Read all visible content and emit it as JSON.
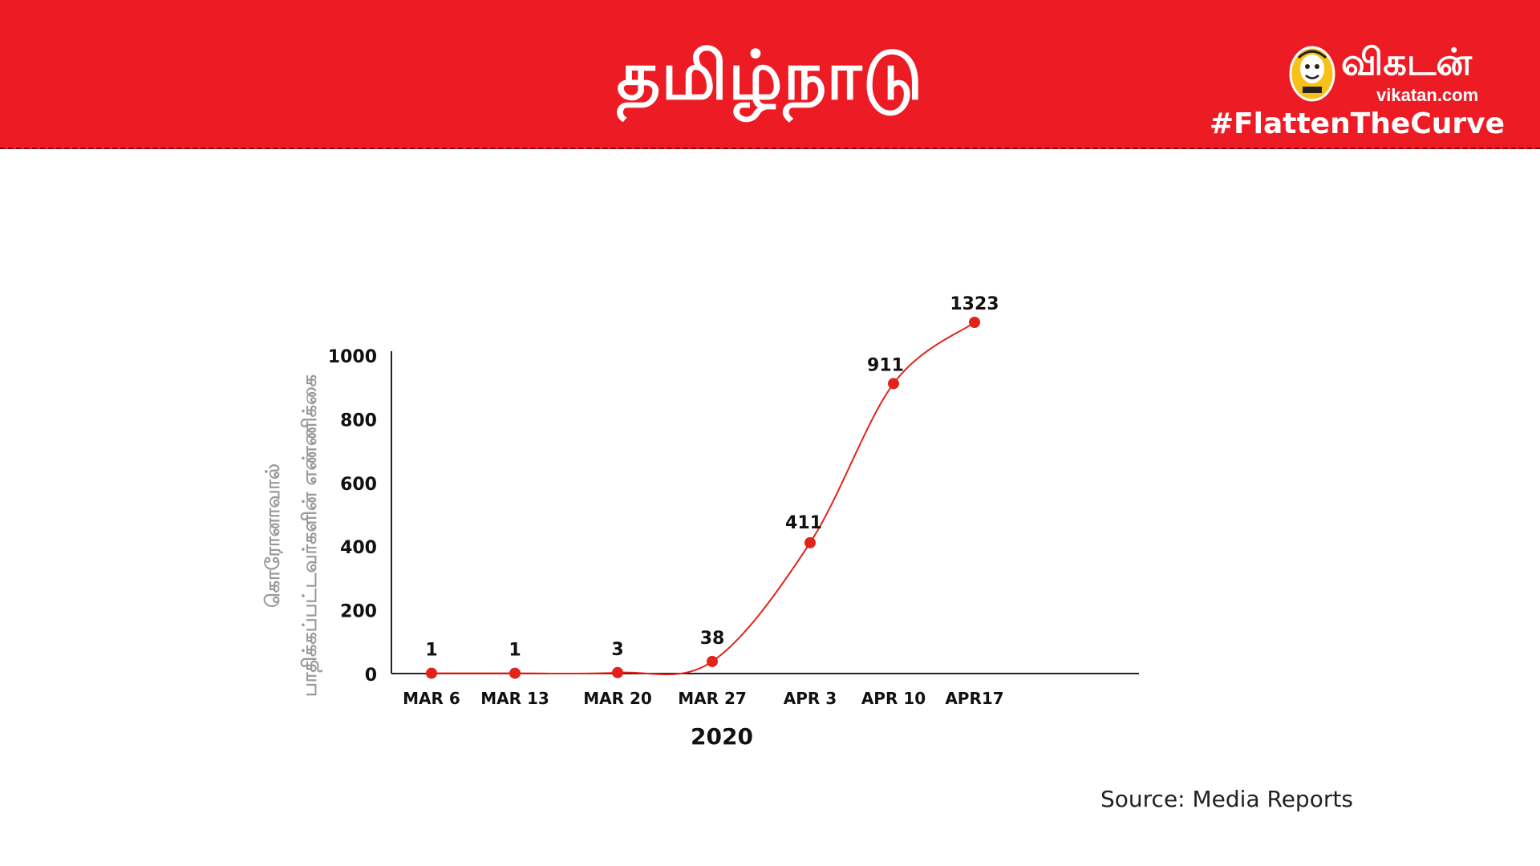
{
  "header": {
    "title": "தமிழ்நாடு",
    "brand_name": "விகடன்",
    "brand_url": "vikatan.com",
    "hashtag": "#FlattenTheCurve",
    "logo_icon": "vikatan-mascot-icon"
  },
  "colors": {
    "header_bg": "#ed1c24",
    "line": "#e2231a",
    "marker": "#e2231a",
    "axis": "#222222",
    "ylabel": "#9a9a9a"
  },
  "chart_data": {
    "type": "line",
    "x": [
      "MAR 6",
      "MAR 13",
      "MAR 20",
      "MAR 27",
      "APR 3",
      "APR 10",
      "APR17"
    ],
    "values": [
      1,
      1,
      3,
      38,
      411,
      911,
      1323
    ],
    "data_labels": [
      "1",
      "1",
      "3",
      "38",
      "411",
      "911",
      "1323"
    ],
    "yticks": [
      "0",
      "200",
      "400",
      "600",
      "800",
      "1000"
    ],
    "ylabel_lines": [
      "கொரோனாவால்",
      "பாதிக்கப்பட்டவர்களின் எண்ணிக்கை"
    ],
    "xlabel": "2020",
    "grid": false,
    "smooth": true
  },
  "source": "Source: Media Reports"
}
